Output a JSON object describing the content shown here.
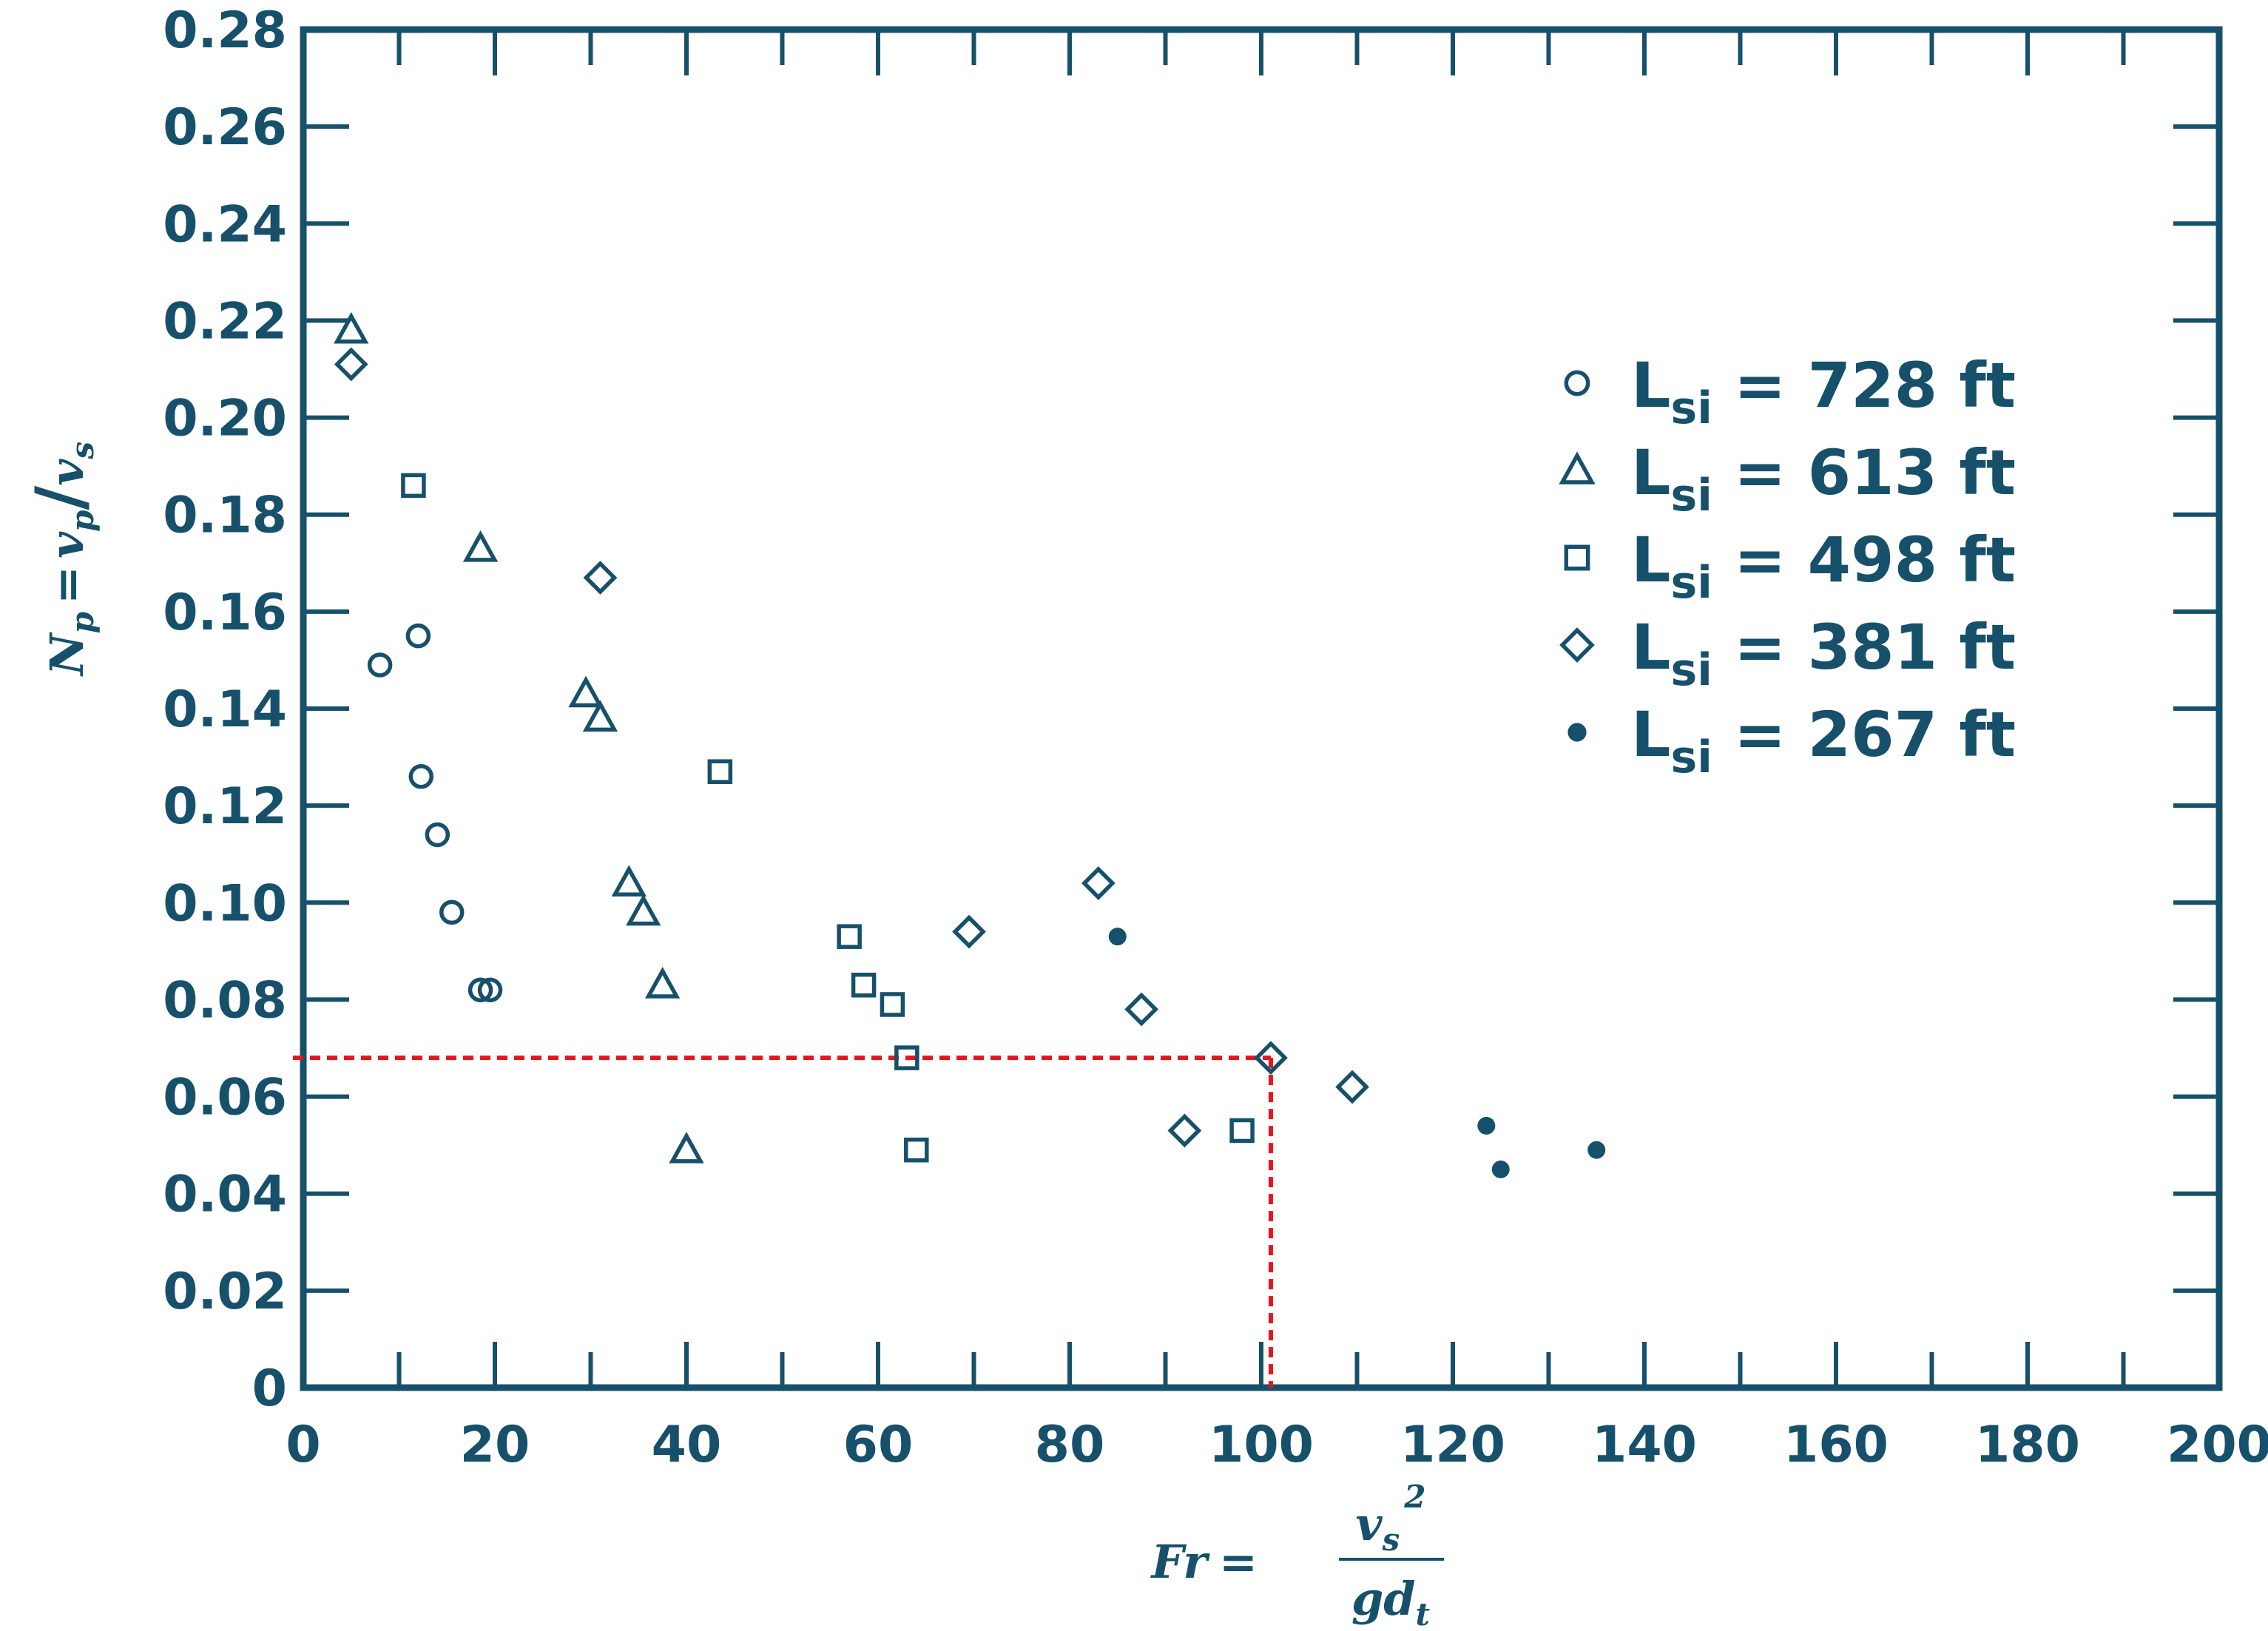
{
  "chart_data": {
    "type": "scatter",
    "xlabel": {
      "lhs": "Fr",
      "eq": "=",
      "numerator": "v",
      "numerator_sub": "s",
      "numerator_sup": "2",
      "denominator": "gd",
      "denominator_sub": "t"
    },
    "ylabel": {
      "lhs": "N",
      "lhs_sub": "p",
      "eq": "=",
      "num": "v",
      "num_sub": "p",
      "slash": "/",
      "den": "v",
      "den_sub": "s"
    },
    "xlim": [
      0,
      200
    ],
    "ylim": [
      0,
      0.28
    ],
    "xticks": [
      "0",
      "20",
      "40",
      "60",
      "80",
      "100",
      "120",
      "140",
      "160",
      "180",
      "200"
    ],
    "yticks": [
      "0",
      "0.02",
      "0.04",
      "0.06",
      "0.08",
      "0.10",
      "0.12",
      "0.14",
      "0.16",
      "0.18",
      "0.20",
      "0.22",
      "0.24",
      "0.26",
      "0.28"
    ],
    "legend_position": "upper-right",
    "series": [
      {
        "name": "L",
        "name_sub": "si",
        "name_rest": " = 728 ft",
        "marker": "circle",
        "points": [
          [
            8,
            0.149
          ],
          [
            12,
            0.155
          ],
          [
            12.3,
            0.126
          ],
          [
            14,
            0.114
          ],
          [
            15.5,
            0.098
          ],
          [
            18.5,
            0.082
          ],
          [
            19.5,
            0.082
          ]
        ]
      },
      {
        "name": "L",
        "name_sub": "si",
        "name_rest": " = 613 ft",
        "marker": "triangle",
        "points": [
          [
            5,
            0.218
          ],
          [
            18.5,
            0.173
          ],
          [
            29.5,
            0.143
          ],
          [
            31,
            0.138
          ],
          [
            34,
            0.104
          ],
          [
            35.5,
            0.098
          ],
          [
            37.5,
            0.083
          ],
          [
            40,
            0.049
          ]
        ]
      },
      {
        "name": "L",
        "name_sub": "si",
        "name_rest": " = 498 ft",
        "marker": "square",
        "points": [
          [
            11.5,
            0.186
          ],
          [
            43.5,
            0.127
          ],
          [
            57,
            0.093
          ],
          [
            58.5,
            0.083
          ],
          [
            61.5,
            0.079
          ],
          [
            63,
            0.068
          ],
          [
            64,
            0.049
          ],
          [
            98,
            0.053
          ]
        ]
      },
      {
        "name": "L",
        "name_sub": "si",
        "name_rest": " = 381 ft",
        "marker": "diamond",
        "points": [
          [
            5,
            0.211
          ],
          [
            31,
            0.167
          ],
          [
            69.5,
            0.094
          ],
          [
            83,
            0.104
          ],
          [
            87.5,
            0.078
          ],
          [
            92,
            0.053
          ],
          [
            101,
            0.068
          ],
          [
            109.5,
            0.062
          ]
        ]
      },
      {
        "name": "L",
        "name_sub": "si",
        "name_rest": " = 267 ft",
        "marker": "dot",
        "points": [
          [
            85,
            0.093
          ],
          [
            123.5,
            0.054
          ],
          [
            125,
            0.045
          ],
          [
            135,
            0.049
          ]
        ]
      }
    ],
    "reference_point": {
      "x": 101,
      "y": 0.068
    },
    "colors": {
      "ink": "#17506b",
      "reference": "#e8141c",
      "background": "#ffffff"
    }
  }
}
